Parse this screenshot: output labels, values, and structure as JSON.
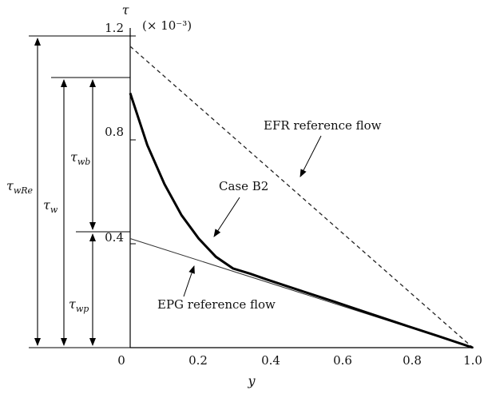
{
  "chart_data": {
    "type": "line",
    "xlabel": "y",
    "ylabel": "τ",
    "y_multiplier": "(× 10⁻³)",
    "xlim": [
      0,
      1.0
    ],
    "ylim": [
      0,
      1.2
    ],
    "x_ticks": [
      "0",
      "0.2",
      "0.4",
      "0.6",
      "0.8",
      "1.0"
    ],
    "y_ticks": [
      "0.4",
      "0.8",
      "1.2"
    ],
    "series": [
      {
        "name": "EFR reference flow",
        "style": "dashed",
        "color": "#222222",
        "points": [
          [
            0,
            1.16
          ],
          [
            1.0,
            0.0
          ]
        ]
      },
      {
        "name": "Case B2",
        "style": "solid-thick",
        "color": "#000000",
        "points": [
          [
            0,
            0.98
          ],
          [
            0.05,
            0.78
          ],
          [
            0.1,
            0.63
          ],
          [
            0.15,
            0.51
          ],
          [
            0.2,
            0.42
          ],
          [
            0.25,
            0.35
          ],
          [
            0.3,
            0.305
          ],
          [
            0.35,
            0.285
          ],
          [
            0.4,
            0.262
          ],
          [
            0.5,
            0.218
          ],
          [
            0.6,
            0.175
          ],
          [
            0.7,
            0.131
          ],
          [
            0.8,
            0.087
          ],
          [
            0.9,
            0.044
          ],
          [
            1.0,
            0.0
          ]
        ]
      },
      {
        "name": "EPG reference flow",
        "style": "solid-thin",
        "color": "#333333",
        "points": [
          [
            0,
            0.42
          ],
          [
            1.0,
            0.0
          ]
        ]
      }
    ],
    "annotations": [
      {
        "text": "EFR reference flow",
        "target": [
          0.7,
          0.615
        ]
      },
      {
        "text": "Case B2",
        "target": [
          0.34,
          0.465
        ]
      },
      {
        "text": "EPG reference flow",
        "target": [
          0.27,
          0.312
        ]
      }
    ],
    "dimension_labels": [
      {
        "symbol": "τ",
        "subscript": "wRe",
        "from": 0,
        "to": 1.16
      },
      {
        "symbol": "τ",
        "subscript": "w",
        "from": 0,
        "to": 0.98
      },
      {
        "symbol": "τ",
        "subscript": "wb",
        "from": 0.42,
        "to": 0.98
      },
      {
        "symbol": "τ",
        "subscript": "wp",
        "from": 0,
        "to": 0.42
      }
    ]
  }
}
